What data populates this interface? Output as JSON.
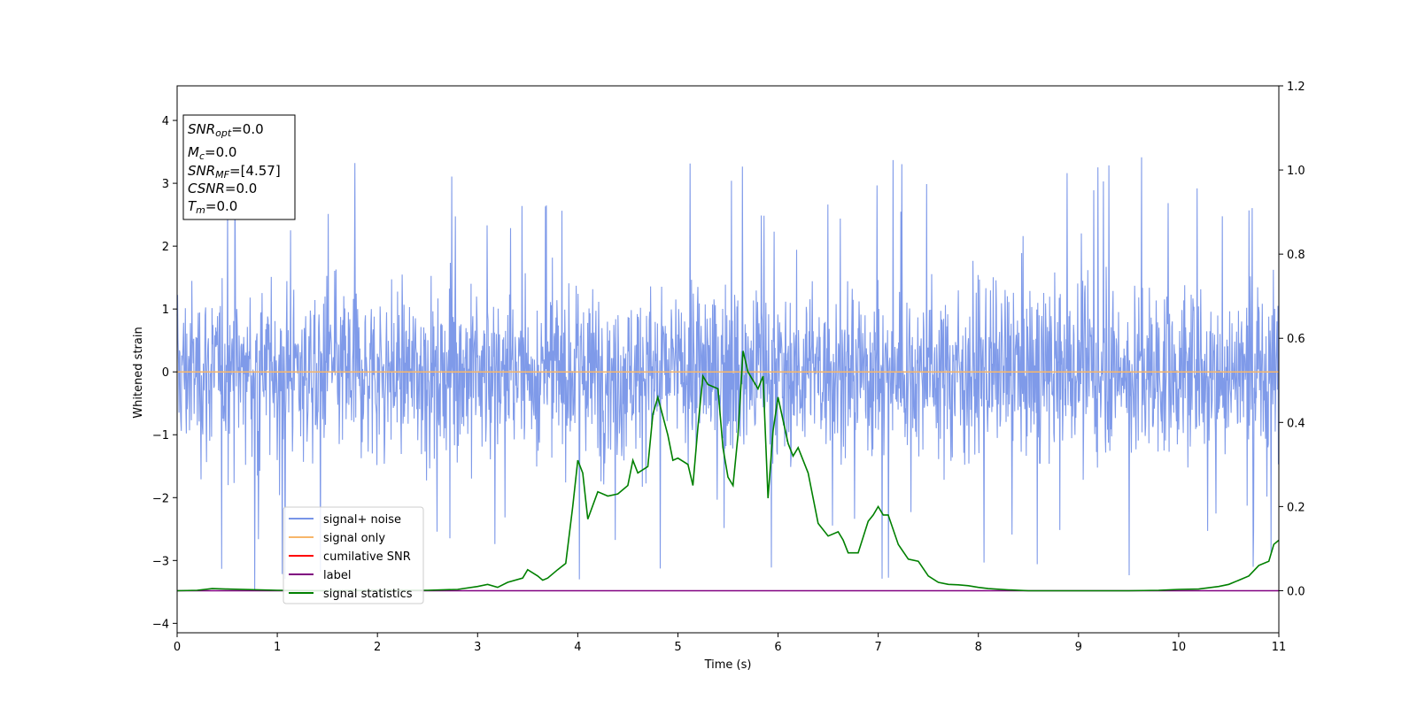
{
  "chart_data": {
    "type": "line",
    "xlabel": "Time (s)",
    "ylabel": "Whitened strain",
    "xlim": [
      0,
      11
    ],
    "ylim": [
      -4.15,
      4.55
    ],
    "y2lim": [
      -0.1,
      1.2
    ],
    "x_ticks": [
      "0",
      "1",
      "2",
      "3",
      "4",
      "5",
      "6",
      "7",
      "8",
      "9",
      "10",
      "11"
    ],
    "y_ticks": [
      "−4",
      "−3",
      "−2",
      "−1",
      "0",
      "1",
      "2",
      "3",
      "4"
    ],
    "y2_ticks": [
      "0.0",
      "0.2",
      "0.4",
      "0.6",
      "0.8",
      "1.0",
      "1.2"
    ],
    "grid": false,
    "legend_position": "lower-left",
    "info_box": {
      "snr_opt": {
        "sym": "SNR",
        "sub": "opt",
        "value": "=0.0"
      },
      "mc": {
        "sym": "M",
        "sub": "c",
        "value": "=0.0"
      },
      "snr_mf": {
        "sym": "SNR",
        "sub": "MF",
        "value": "=[4.57]"
      },
      "csnr": {
        "sym": "CSNR",
        "value": "=0.0"
      },
      "tm": {
        "sym": "T",
        "sub": "m",
        "value": "=0.0"
      }
    },
    "series": [
      {
        "name": "signal+ noise",
        "color": "#7895e8",
        "axis": "left",
        "style": "dense noise approx. ±1.8 with spikes up to 3.8 and down to -3.7"
      },
      {
        "name": "signal only",
        "color": "#f7b66a",
        "axis": "left",
        "x": [
          0,
          11
        ],
        "y": [
          0,
          0
        ]
      },
      {
        "name": "cumilative SNR",
        "color": "#ff0000",
        "axis": "right",
        "x": [],
        "y": []
      },
      {
        "name": "label",
        "color": "#800080",
        "axis": "right",
        "x": [
          0,
          11
        ],
        "y": [
          0,
          0
        ]
      },
      {
        "name": "signal statistics",
        "color": "#008000",
        "axis": "right",
        "x": [
          0,
          0.2,
          0.35,
          0.5,
          1.0,
          1.5,
          2.0,
          2.5,
          2.8,
          3.0,
          3.1,
          3.2,
          3.3,
          3.45,
          3.5,
          3.6,
          3.65,
          3.7,
          3.8,
          3.88,
          3.95,
          4.0,
          4.05,
          4.1,
          4.2,
          4.3,
          4.4,
          4.5,
          4.55,
          4.6,
          4.7,
          4.75,
          4.8,
          4.9,
          4.95,
          5.0,
          5.1,
          5.15,
          5.2,
          5.25,
          5.3,
          5.4,
          5.45,
          5.5,
          5.55,
          5.6,
          5.65,
          5.7,
          5.8,
          5.85,
          5.9,
          5.95,
          6.0,
          6.1,
          6.15,
          6.2,
          6.3,
          6.4,
          6.5,
          6.6,
          6.65,
          6.7,
          6.8,
          6.9,
          6.95,
          7.0,
          7.05,
          7.1,
          7.2,
          7.3,
          7.4,
          7.5,
          7.6,
          7.7,
          7.8,
          7.9,
          8.0,
          8.1,
          8.3,
          8.5,
          9.0,
          9.5,
          9.8,
          10.0,
          10.2,
          10.4,
          10.5,
          10.6,
          10.7,
          10.8,
          10.9,
          10.95,
          11.0
        ],
        "y": [
          0.0,
          0.001,
          0.005,
          0.004,
          0.001,
          0.0,
          0.001,
          0.001,
          0.003,
          0.01,
          0.015,
          0.008,
          0.02,
          0.03,
          0.05,
          0.035,
          0.025,
          0.03,
          0.05,
          0.065,
          0.2,
          0.31,
          0.28,
          0.17,
          0.235,
          0.225,
          0.23,
          0.25,
          0.31,
          0.28,
          0.295,
          0.42,
          0.46,
          0.37,
          0.31,
          0.315,
          0.3,
          0.25,
          0.39,
          0.51,
          0.49,
          0.48,
          0.34,
          0.27,
          0.25,
          0.37,
          0.57,
          0.52,
          0.48,
          0.51,
          0.22,
          0.38,
          0.46,
          0.35,
          0.32,
          0.34,
          0.28,
          0.16,
          0.13,
          0.14,
          0.12,
          0.09,
          0.09,
          0.165,
          0.18,
          0.2,
          0.18,
          0.18,
          0.11,
          0.075,
          0.07,
          0.035,
          0.02,
          0.015,
          0.014,
          0.012,
          0.008,
          0.005,
          0.002,
          0.0,
          0.0,
          0.0,
          0.001,
          0.003,
          0.004,
          0.01,
          0.015,
          0.025,
          0.035,
          0.06,
          0.07,
          0.11,
          0.12
        ]
      }
    ]
  }
}
